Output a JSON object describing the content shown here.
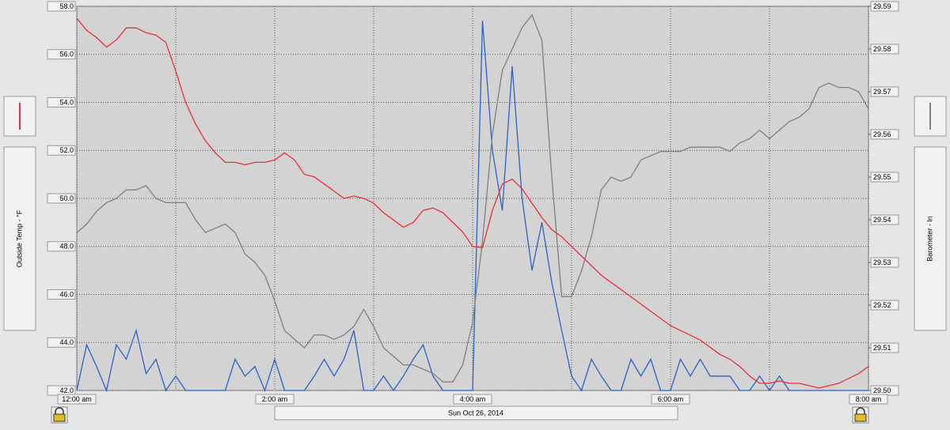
{
  "chart_data": {
    "type": "line",
    "subtitle": "Sun Oct 26, 2014",
    "x": [
      0,
      0.1,
      0.2,
      0.3,
      0.4,
      0.5,
      0.6,
      0.7,
      0.8,
      0.9,
      1,
      1.1,
      1.2,
      1.3,
      1.4,
      1.5,
      1.6,
      1.7,
      1.8,
      1.9,
      2,
      2.1,
      2.2,
      2.3,
      2.4,
      2.5,
      2.6,
      2.7,
      2.8,
      2.9,
      3,
      3.1,
      3.2,
      3.3,
      3.4,
      3.5,
      3.6,
      3.7,
      3.8,
      3.9,
      4,
      4.1,
      4.2,
      4.3,
      4.4,
      4.5,
      4.6,
      4.7,
      4.8,
      4.9,
      5,
      5.1,
      5.2,
      5.3,
      5.4,
      5.5,
      5.6,
      5.7,
      5.8,
      5.9,
      6,
      6.1,
      6.2,
      6.3,
      6.4,
      6.5,
      6.6,
      6.7,
      6.8,
      6.9,
      7,
      7.1,
      7.2,
      7.3,
      7.4,
      7.5,
      7.6,
      7.7,
      7.8,
      7.9,
      8
    ],
    "xlim": [
      0,
      8
    ],
    "xticks": [
      {
        "value": 0,
        "label": "12:00 am"
      },
      {
        "value": 2,
        "label": "2:00 am"
      },
      {
        "value": 4,
        "label": "4:00 am"
      },
      {
        "value": 6,
        "label": "6:00 am"
      },
      {
        "value": 8,
        "label": "8:00 am"
      }
    ],
    "ylim": [
      42,
      58
    ],
    "yticks": [
      {
        "value": 42,
        "label": "42.0"
      },
      {
        "value": 44,
        "label": "44.0"
      },
      {
        "value": 46,
        "label": "46.0"
      },
      {
        "value": 48,
        "label": "48.0"
      },
      {
        "value": 50,
        "label": "50.0"
      },
      {
        "value": 52,
        "label": "52.0"
      },
      {
        "value": 54,
        "label": "54.0"
      },
      {
        "value": 56,
        "label": "56.0"
      },
      {
        "value": 58,
        "label": "58.0"
      }
    ],
    "y2lim": [
      29.5,
      29.59
    ],
    "y2ticks": [
      {
        "value": 29.5,
        "label": "29.50"
      },
      29.51,
      29.52,
      29.53,
      29.54,
      29.55,
      29.56,
      29.57,
      29.58,
      29.59
    ],
    "grid": true,
    "series": [
      {
        "name": "Outside Temp - °F",
        "color": "#e8303a",
        "axis": "y",
        "values": [
          57.5,
          57.0,
          56.7,
          56.3,
          56.6,
          57.1,
          57.1,
          56.9,
          56.8,
          56.5,
          55.3,
          54.0,
          53.1,
          52.4,
          51.9,
          51.5,
          51.5,
          51.4,
          51.5,
          51.5,
          51.6,
          51.9,
          51.6,
          51.0,
          50.9,
          50.6,
          50.3,
          50.0,
          50.1,
          50.0,
          49.8,
          49.4,
          49.1,
          48.8,
          49.0,
          49.5,
          49.6,
          49.4,
          49.0,
          48.6,
          48.0,
          47.95,
          49.5,
          50.6,
          50.8,
          50.4,
          49.8,
          49.2,
          48.7,
          48.4,
          48.0,
          47.6,
          47.2,
          46.8,
          46.5,
          46.2,
          45.9,
          45.6,
          45.3,
          45.0,
          44.7,
          44.5,
          44.3,
          44.1,
          43.8,
          43.5,
          43.3,
          43.0,
          42.6,
          42.3,
          42.3,
          42.4,
          42.3,
          42.3,
          42.2,
          42.1,
          42.2,
          42.3,
          42.5,
          42.7,
          43.0
        ]
      },
      {
        "name": "Barometer - In",
        "color": "#808080",
        "axis": "y2",
        "values": [
          29.537,
          29.539,
          29.542,
          29.544,
          29.545,
          29.547,
          29.547,
          29.548,
          29.545,
          29.544,
          29.544,
          29.544,
          29.54,
          29.537,
          29.538,
          29.539,
          29.537,
          29.532,
          29.53,
          29.527,
          29.521,
          29.514,
          29.512,
          29.51,
          29.513,
          29.513,
          29.512,
          29.513,
          29.515,
          29.519,
          29.515,
          29.51,
          29.508,
          29.506,
          29.506,
          29.505,
          29.504,
          29.502,
          29.502,
          29.506,
          29.516,
          29.535,
          29.56,
          29.575,
          29.58,
          29.585,
          29.588,
          29.582,
          29.55,
          29.522,
          29.522,
          29.528,
          29.536,
          29.547,
          29.55,
          29.549,
          29.55,
          29.554,
          29.555,
          29.556,
          29.556,
          29.556,
          29.557,
          29.557,
          29.557,
          29.557,
          29.556,
          29.558,
          29.559,
          29.561,
          29.559,
          29.561,
          29.563,
          29.564,
          29.566,
          29.571,
          29.572,
          29.571,
          29.571,
          29.57,
          29.566
        ]
      },
      {
        "color": "#2a62c8",
        "axis": "y",
        "values": [
          42,
          43.9,
          43.0,
          42,
          43.9,
          43.3,
          44.5,
          42.7,
          43.3,
          42,
          42.6,
          42,
          42,
          42,
          42,
          42,
          43.3,
          42.6,
          43.0,
          42,
          43.3,
          42,
          42,
          42,
          42.6,
          43.3,
          42.6,
          43.3,
          44.5,
          42,
          42,
          42.6,
          42,
          42.6,
          43.3,
          43.9,
          42.6,
          42,
          42,
          42,
          42,
          57.4,
          52.0,
          49.5,
          55.5,
          50.0,
          47.0,
          49.0,
          46.5,
          44.5,
          42.6,
          42,
          43.3,
          42.6,
          42,
          42,
          43.3,
          42.6,
          43.3,
          42,
          42,
          43.3,
          42.6,
          43.3,
          42.6,
          42.6,
          42.6,
          42,
          42,
          42.6,
          42,
          42.6,
          42,
          42,
          42,
          42,
          42,
          42,
          42,
          42,
          42
        ]
      }
    ]
  }
}
